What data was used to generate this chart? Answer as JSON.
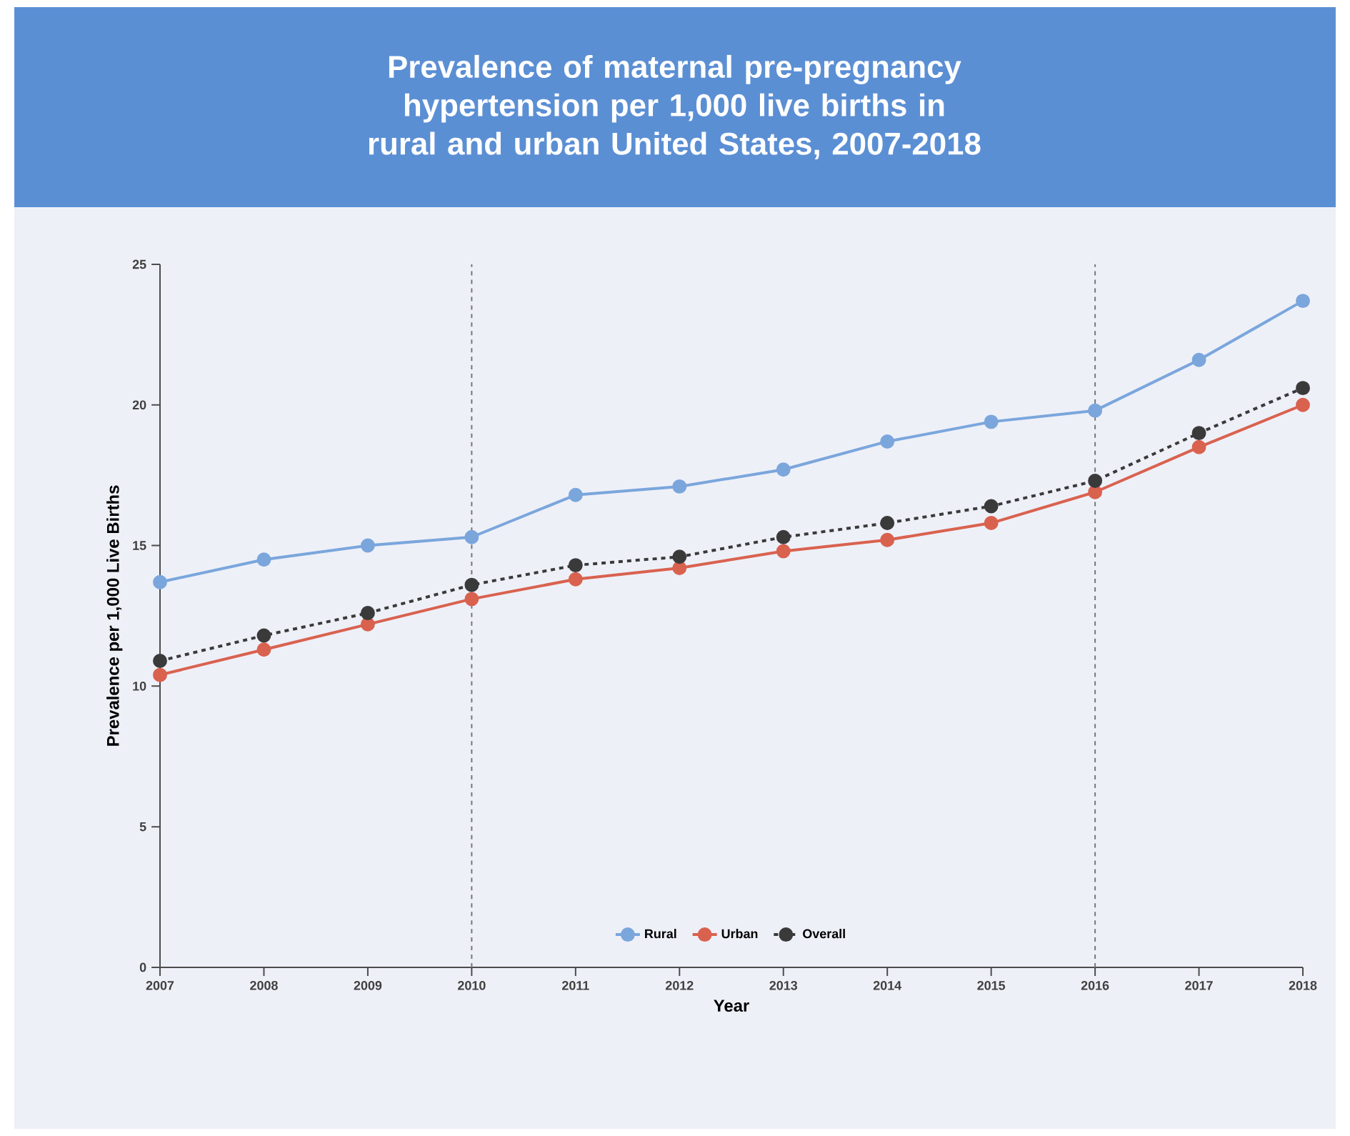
{
  "chart_data": {
    "type": "line",
    "title": "Prevalence of maternal pre-pregnancy hypertension per 1,000 live births in rural and urban United States, 2007-2018",
    "xlabel": "Year",
    "ylabel": "Prevalence per 1,000 Live Births",
    "x": [
      2007,
      2008,
      2009,
      2010,
      2011,
      2012,
      2013,
      2014,
      2015,
      2016,
      2017,
      2018
    ],
    "series": [
      {
        "name": "Rural",
        "color": "#7aa6dc",
        "values": [
          13.7,
          14.5,
          15.0,
          15.3,
          16.8,
          17.1,
          17.7,
          18.7,
          19.4,
          19.8,
          21.6,
          23.7
        ]
      },
      {
        "name": "Urban",
        "color": "#d9624f",
        "values": [
          10.4,
          11.3,
          12.2,
          13.1,
          13.8,
          14.2,
          14.8,
          15.2,
          15.8,
          16.9,
          18.5,
          20.0
        ]
      },
      {
        "name": "Overall",
        "color": "#3a3a3a",
        "line_style": "dashed",
        "values": [
          10.9,
          11.8,
          12.6,
          13.6,
          14.3,
          14.6,
          15.3,
          15.8,
          16.4,
          17.3,
          19.0,
          20.6
        ]
      }
    ],
    "xlim": [
      2007,
      2018
    ],
    "ylim": [
      0,
      25
    ],
    "xticks": [
      2007,
      2008,
      2009,
      2010,
      2011,
      2012,
      2013,
      2014,
      2015,
      2016,
      2017,
      2018
    ],
    "yticks": [
      0,
      5,
      10,
      15,
      20,
      25
    ],
    "ref_lines": [
      {
        "axis": "x",
        "value": 2010,
        "color": "#777777",
        "line_style": "dashed"
      },
      {
        "axis": "x",
        "value": 2016,
        "color": "#777777",
        "line_style": "dashed"
      }
    ],
    "marker": "circle",
    "legend": "bottom",
    "grid": false
  }
}
